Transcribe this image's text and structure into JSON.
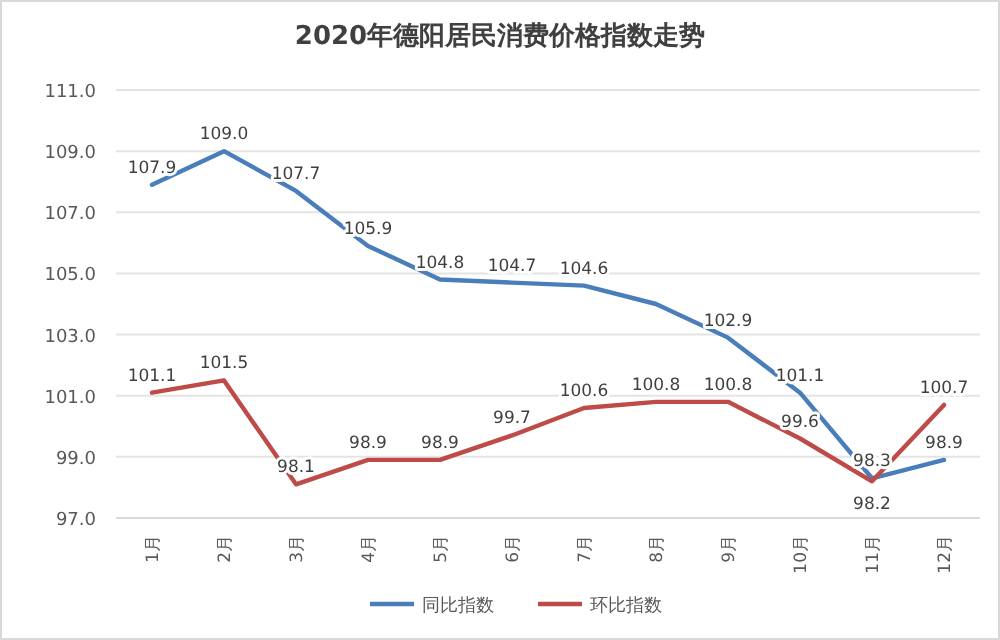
{
  "chart_data": {
    "type": "line",
    "title": "2020年德阳居民消费价格指数走势",
    "categories": [
      "1月",
      "2月",
      "3月",
      "4月",
      "5月",
      "6月",
      "7月",
      "8月",
      "9月",
      "10月",
      "11月",
      "12月"
    ],
    "series": [
      {
        "name": "同比指数",
        "color": "#4a7ebb",
        "values": [
          107.9,
          109.0,
          107.7,
          105.9,
          104.8,
          104.7,
          104.6,
          104.0,
          102.9,
          101.1,
          98.3,
          98.9
        ],
        "value_labels": [
          "107.9",
          "109.0",
          "107.7",
          "105.9",
          "104.8",
          "104.7",
          "104.6",
          null,
          "102.9",
          "101.1",
          "98.3",
          "98.9"
        ]
      },
      {
        "name": "环比指数",
        "color": "#be4b48",
        "values": [
          101.1,
          101.5,
          98.1,
          98.9,
          98.9,
          99.7,
          100.6,
          100.8,
          100.8,
          99.6,
          98.2,
          100.7
        ],
        "value_labels": [
          "101.1",
          "101.5",
          "98.1",
          "98.9",
          "98.9",
          "99.7",
          "100.6",
          "100.8",
          "100.8",
          "99.6",
          "98.2",
          "100.7"
        ]
      }
    ],
    "ylim": [
      97.0,
      111.0
    ],
    "yticks": [
      {
        "value": 97,
        "label": "97.0"
      },
      {
        "value": 99,
        "label": "99.0"
      },
      {
        "value": 101,
        "label": "101.0"
      },
      {
        "value": 103,
        "label": "103.0"
      },
      {
        "value": 105,
        "label": "105.0"
      },
      {
        "value": 107,
        "label": "107.0"
      },
      {
        "value": 109,
        "label": "109.0"
      },
      {
        "value": 111,
        "label": "111.0"
      }
    ],
    "grid": "y",
    "legend": "bottom",
    "marker": "none",
    "line_style": "solid"
  }
}
